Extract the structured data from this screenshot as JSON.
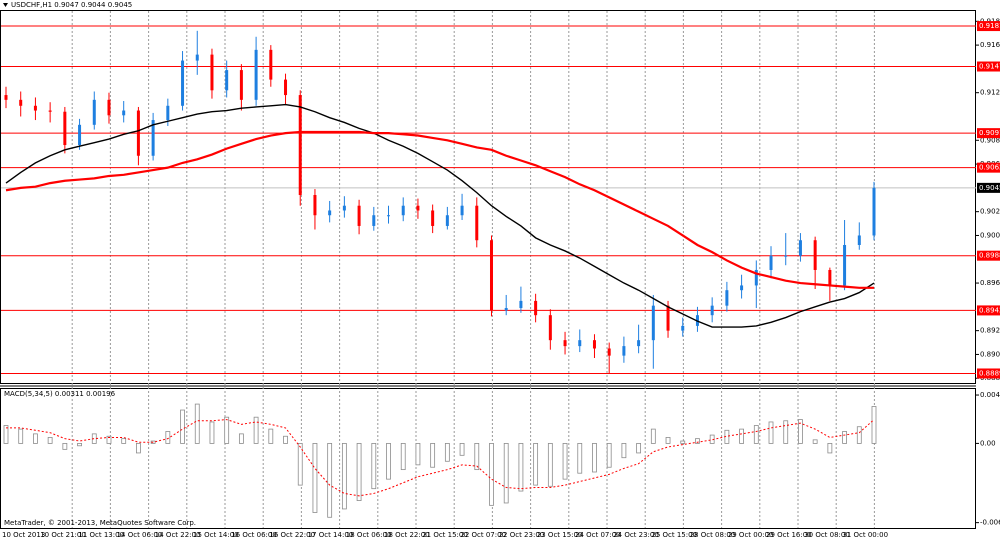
{
  "chart_data": [
    {
      "type": "candlestick",
      "title": "USDCHF,H1  0.9047 0.9044 0.9045",
      "x_tick_labels": [
        "10 Oct 2013",
        "10 Oct 21:00",
        "11 Oct 13:00",
        "14 Oct 06:00",
        "14 Oct 22:00",
        "15 Oct 14:00",
        "16 Oct 06:00",
        "16 Oct 22:00",
        "17 Oct 14:00",
        "18 Oct 06:00",
        "18 Oct 22:00",
        "21 Oct 15:00",
        "22 Oct 07:00",
        "22 Oct 23:00",
        "23 Oct 15:00",
        "24 Oct 07:00",
        "24 Oct 23:00",
        "25 Oct 15:00",
        "28 Oct 08:00",
        "29 Oct 00:00",
        "29 Oct 16:00",
        "30 Oct 08:00",
        "31 Oct 00:00"
      ],
      "open": [
        0.9123,
        0.9119,
        0.9114,
        0.911,
        0.9109,
        0.9081,
        0.9098,
        0.9119,
        0.9106,
        0.911,
        0.9072,
        0.9102,
        0.9114,
        0.9152,
        0.9157,
        0.9127,
        0.9144,
        0.9119,
        0.9161,
        0.9136,
        0.9123,
        0.9039,
        0.9022,
        0.9026,
        0.903,
        0.9013,
        0.9022,
        0.9022,
        0.903,
        0.9026,
        0.9013,
        0.9022,
        0.903,
        0.9001,
        0.8942,
        0.8944,
        0.895,
        0.8938,
        0.8917,
        0.8912,
        0.8917,
        0.891,
        0.8904,
        0.8912,
        0.8917,
        0.8946,
        0.8925,
        0.8929,
        0.8938,
        0.8946,
        0.8959,
        0.8963,
        0.8976,
        0.8988,
        0.8988,
        0.9001,
        0.8976,
        0.8963,
        0.8997,
        0.9005
      ],
      "high": [
        0.913,
        0.9126,
        0.9121,
        0.9117,
        0.9113,
        0.9103,
        0.9126,
        0.9125,
        0.9118,
        0.9113,
        0.9108,
        0.912,
        0.916,
        0.9177,
        0.9162,
        0.9152,
        0.9149,
        0.9172,
        0.9165,
        0.9141,
        0.9127,
        0.9044,
        0.9034,
        0.9038,
        0.9035,
        0.9029,
        0.903,
        0.9037,
        0.9036,
        0.9031,
        0.9029,
        0.904,
        0.9037,
        0.9005,
        0.8955,
        0.8962,
        0.8956,
        0.8943,
        0.8924,
        0.8926,
        0.8922,
        0.8915,
        0.892,
        0.893,
        0.8955,
        0.895,
        0.8936,
        0.8945,
        0.8953,
        0.8966,
        0.8972,
        0.8984,
        0.8996,
        0.9007,
        0.9007,
        0.9004,
        0.8978,
        0.9018,
        0.9016,
        0.905
      ],
      "low": [
        0.9112,
        0.9105,
        0.9102,
        0.91,
        0.9074,
        0.9077,
        0.9094,
        0.9099,
        0.91,
        0.9064,
        0.9068,
        0.9097,
        0.911,
        0.914,
        0.912,
        0.9121,
        0.911,
        0.9114,
        0.913,
        0.9115,
        0.903,
        0.901,
        0.9016,
        0.902,
        0.9006,
        0.9009,
        0.9015,
        0.9017,
        0.9019,
        0.9007,
        0.901,
        0.9018,
        0.8995,
        0.8937,
        0.8938,
        0.894,
        0.8932,
        0.8909,
        0.8905,
        0.8907,
        0.8902,
        0.8889,
        0.8898,
        0.8906,
        0.8893,
        0.8919,
        0.892,
        0.8924,
        0.8932,
        0.8941,
        0.8952,
        0.8944,
        0.8969,
        0.898,
        0.8983,
        0.896,
        0.895,
        0.8959,
        0.8993,
        0.9001
      ],
      "close": [
        0.9119,
        0.9114,
        0.911,
        0.9109,
        0.9081,
        0.9098,
        0.9119,
        0.9106,
        0.911,
        0.9072,
        0.9102,
        0.9114,
        0.9152,
        0.9157,
        0.9127,
        0.9144,
        0.9119,
        0.9161,
        0.9136,
        0.9123,
        0.9039,
        0.9022,
        0.9026,
        0.903,
        0.9013,
        0.9022,
        0.9022,
        0.903,
        0.9026,
        0.9013,
        0.9022,
        0.903,
        0.9001,
        0.8942,
        0.8944,
        0.895,
        0.8938,
        0.8917,
        0.8912,
        0.8917,
        0.891,
        0.8904,
        0.8912,
        0.8917,
        0.8946,
        0.8925,
        0.8929,
        0.8938,
        0.8946,
        0.8959,
        0.8963,
        0.8976,
        0.8988,
        0.8988,
        0.9001,
        0.8976,
        0.8963,
        0.8997,
        0.9005,
        0.9045
      ],
      "up_color": "#1e7fe0",
      "down_color": "#ff0000",
      "moving_averages": [
        {
          "color": "#000000",
          "values": [
            0.9049,
            0.9058,
            0.9066,
            0.9072,
            0.9077,
            0.908,
            0.9083,
            0.9086,
            0.909,
            0.9093,
            0.9098,
            0.9101,
            0.9104,
            0.9107,
            0.9109,
            0.911,
            0.9112,
            0.9113,
            0.9114,
            0.9115,
            0.9113,
            0.9109,
            0.9104,
            0.91,
            0.9095,
            0.9091,
            0.9085,
            0.908,
            0.9074,
            0.9067,
            0.906,
            0.9051,
            0.9041,
            0.903,
            0.9021,
            0.9013,
            0.9003,
            0.8997,
            0.8992,
            0.8986,
            0.8979,
            0.8972,
            0.8965,
            0.8959,
            0.8952,
            0.8945,
            0.8939,
            0.8933,
            0.8928,
            0.8928,
            0.8928,
            0.8929,
            0.8932,
            0.8936,
            0.8941,
            0.8945,
            0.8949,
            0.8952,
            0.8957,
            0.8965
          ]
        },
        {
          "color": "#ff0000",
          "values": [
            0.9043,
            0.9045,
            0.9046,
            0.9049,
            0.9051,
            0.9052,
            0.9053,
            0.9055,
            0.9056,
            0.9058,
            0.906,
            0.9062,
            0.9066,
            0.9069,
            0.9073,
            0.9078,
            0.9082,
            0.9086,
            0.9089,
            0.9091,
            0.9092,
            0.9092,
            0.9092,
            0.9092,
            0.9092,
            0.9091,
            0.9091,
            0.909,
            0.9089,
            0.9087,
            0.9085,
            0.9082,
            0.9079,
            0.9077,
            0.9072,
            0.9068,
            0.9064,
            0.9059,
            0.9054,
            0.9048,
            0.9043,
            0.9037,
            0.9031,
            0.9025,
            0.9019,
            0.9013,
            0.9005,
            0.8997,
            0.8991,
            0.8984,
            0.8978,
            0.8973,
            0.897,
            0.8967,
            0.8965,
            0.8964,
            0.8963,
            0.8962,
            0.8961,
            0.8961
          ]
        }
      ],
      "levels": {
        "color": "#ff0000",
        "values": [
          0.9181,
          0.9147,
          0.9091,
          0.9062,
          0.8988,
          0.8942,
          0.8889
        ]
      },
      "current_price": 0.9045,
      "ylim": [
        0.8881,
        0.91945
      ],
      "yticks": [
        0.9185,
        0.9165,
        0.9125,
        0.9085,
        0.9065,
        0.9025,
        0.9005,
        0.8965,
        0.8925,
        0.8905,
        0.8885
      ]
    },
    {
      "type": "bar",
      "title": "MACD(5,34,5) 0.00311 0.00196",
      "values": [
        0.0015,
        0.0012,
        0.0008,
        0.0005,
        -0.0005,
        -0.0002,
        0.0008,
        0.0006,
        0.0004,
        -0.0008,
        0.0002,
        0.001,
        0.0028,
        0.0033,
        0.0018,
        0.0022,
        0.0008,
        0.0022,
        0.0012,
        0.0006,
        -0.0035,
        -0.0058,
        -0.0062,
        -0.0055,
        -0.0048,
        -0.0038,
        -0.003,
        -0.0022,
        -0.0018,
        -0.002,
        -0.0015,
        -0.001,
        -0.0022,
        -0.0052,
        -0.005,
        -0.004,
        -0.0035,
        -0.0036,
        -0.003,
        -0.0025,
        -0.0024,
        -0.002,
        -0.0012,
        -0.0008,
        0.0012,
        0.0005,
        0.0002,
        0.0004,
        0.0007,
        0.0011,
        0.0012,
        0.0015,
        0.0018,
        0.0019,
        0.002,
        0.0003,
        -0.0008,
        0.001,
        0.0014,
        0.0031
      ],
      "color": "#8c8c8c",
      "signal": {
        "color": "#ff0000",
        "values": [
          0.0013,
          0.0013,
          0.0011,
          0.0009,
          0.0004,
          0.0002,
          0.0004,
          0.0005,
          0.0005,
          0.0001,
          0.0001,
          0.0004,
          0.0012,
          0.0019,
          0.0019,
          0.002,
          0.0016,
          0.0018,
          0.0016,
          0.0013,
          -0.0003,
          -0.0021,
          -0.0035,
          -0.0042,
          -0.0044,
          -0.0042,
          -0.0038,
          -0.0033,
          -0.0028,
          -0.0025,
          -0.0022,
          -0.0018,
          -0.0019,
          -0.003,
          -0.0037,
          -0.0038,
          -0.0037,
          -0.0037,
          -0.0035,
          -0.0032,
          -0.0029,
          -0.0026,
          -0.0021,
          -0.0017,
          -0.0007,
          -0.0003,
          -0.0001,
          0.0001,
          0.0003,
          0.0006,
          0.0008,
          0.001,
          0.0013,
          0.0015,
          0.0017,
          0.0012,
          0.0005,
          0.0007,
          0.0009,
          0.002
        ]
      },
      "ylim": [
        -0.0071,
        0.00465
      ],
      "yticks": [
        0.00406,
        {
          "value": 0,
          "label": "0.00"
        },
        -0.00665
      ],
      "annotation": "MetaTrader, © 2001-2013, MetaQuotes Software Corp."
    }
  ]
}
